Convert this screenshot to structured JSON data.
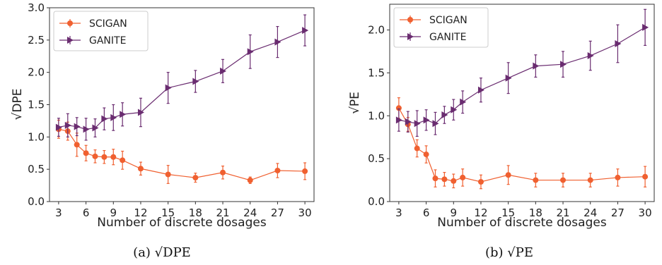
{
  "colors": {
    "scigan": "#f06030",
    "ganite": "#6a2c70"
  },
  "chart_data": [
    {
      "type": "line",
      "caption": "(a) √DPE",
      "xlabel": "Number of discrete dosages",
      "ylabel": "√DPE",
      "xlim": [
        2,
        31
      ],
      "ylim": [
        0,
        3.0
      ],
      "xticks": [
        3,
        6,
        9,
        12,
        15,
        18,
        21,
        24,
        27,
        30
      ],
      "yticks": [
        0.0,
        0.5,
        1.0,
        1.5,
        2.0,
        2.5,
        3.0
      ],
      "ytick_labels": [
        "0.0",
        "0.5",
        "1.0",
        "1.5",
        "2.0",
        "2.5",
        "3.0"
      ],
      "legend": "top-left",
      "series": [
        {
          "name": "SCIGAN",
          "marker": "circle",
          "x": [
            3,
            4,
            5,
            6,
            7,
            8,
            9,
            10,
            12,
            15,
            18,
            21,
            24,
            27,
            30
          ],
          "y": [
            1.12,
            1.09,
            0.88,
            0.75,
            0.7,
            0.69,
            0.69,
            0.64,
            0.51,
            0.42,
            0.37,
            0.45,
            0.33,
            0.48,
            0.47
          ],
          "err": [
            0.14,
            0.14,
            0.18,
            0.12,
            0.1,
            0.1,
            0.12,
            0.14,
            0.1,
            0.14,
            0.07,
            0.1,
            0.05,
            0.11,
            0.13
          ]
        },
        {
          "name": "GANITE",
          "marker": "triangle-right",
          "x": [
            3,
            4,
            5,
            6,
            7,
            8,
            9,
            10,
            12,
            15,
            18,
            21,
            24,
            27,
            30
          ],
          "y": [
            1.15,
            1.18,
            1.16,
            1.12,
            1.14,
            1.28,
            1.3,
            1.35,
            1.38,
            1.76,
            1.86,
            2.02,
            2.32,
            2.47,
            2.65
          ],
          "err": [
            0.14,
            0.18,
            0.14,
            0.17,
            0.14,
            0.17,
            0.2,
            0.18,
            0.22,
            0.24,
            0.17,
            0.18,
            0.26,
            0.24,
            0.24
          ]
        }
      ]
    },
    {
      "type": "line",
      "caption": "(b) √PE",
      "xlabel": "Number of discrete dosages",
      "ylabel": "√PE",
      "xlim": [
        2,
        31
      ],
      "ylim": [
        0,
        2.3
      ],
      "xticks": [
        3,
        6,
        9,
        12,
        15,
        18,
        21,
        24,
        27,
        30
      ],
      "yticks": [
        0.0,
        0.5,
        1.0,
        1.5,
        2.0
      ],
      "ytick_labels": [
        "0.0",
        "0.5",
        "1.0",
        "1.5",
        "2.0"
      ],
      "legend": "top-left",
      "series": [
        {
          "name": "SCIGAN",
          "marker": "circle",
          "x": [
            3,
            4,
            5,
            6,
            7,
            8,
            9,
            10,
            12,
            15,
            18,
            21,
            24,
            27,
            30
          ],
          "y": [
            1.09,
            0.9,
            0.62,
            0.55,
            0.27,
            0.26,
            0.24,
            0.28,
            0.23,
            0.31,
            0.25,
            0.25,
            0.25,
            0.28,
            0.29
          ],
          "err": [
            0.12,
            0.08,
            0.1,
            0.1,
            0.1,
            0.08,
            0.08,
            0.1,
            0.08,
            0.11,
            0.08,
            0.08,
            0.08,
            0.1,
            0.12
          ]
        },
        {
          "name": "GANITE",
          "marker": "triangle-right",
          "x": [
            3,
            4,
            5,
            6,
            7,
            8,
            9,
            10,
            12,
            15,
            18,
            21,
            24,
            27,
            30
          ],
          "y": [
            0.95,
            0.93,
            0.91,
            0.95,
            0.91,
            1.01,
            1.07,
            1.16,
            1.3,
            1.44,
            1.58,
            1.6,
            1.7,
            1.84,
            2.03
          ],
          "err": [
            0.13,
            0.12,
            0.15,
            0.12,
            0.13,
            0.1,
            0.12,
            0.13,
            0.14,
            0.18,
            0.13,
            0.15,
            0.17,
            0.22,
            0.21
          ]
        }
      ]
    }
  ]
}
